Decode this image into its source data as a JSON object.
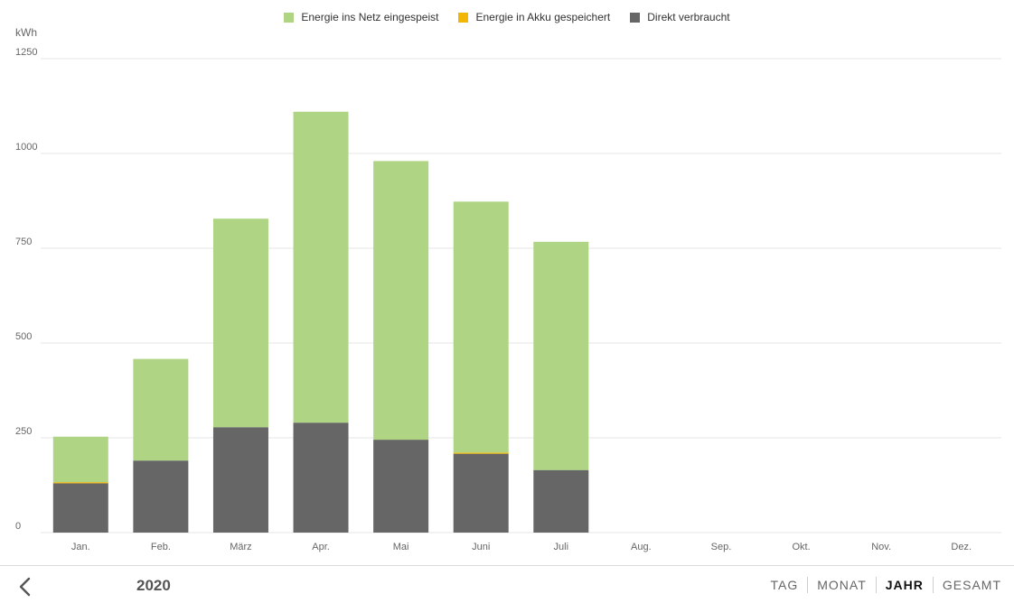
{
  "colors": {
    "grid_fed": "#afd584",
    "battery_stored": "#f2b705",
    "direct_used": "#666666",
    "gridline": "#e6e6e6",
    "axis_text": "#666666"
  },
  "legend": [
    {
      "name": "Energie ins Netz eingespeist",
      "color": "#afd584"
    },
    {
      "name": "Energie in Akku gespeichert",
      "color": "#f2b705"
    },
    {
      "name": "Direkt verbraucht",
      "color": "#666666"
    }
  ],
  "chart_data": {
    "type": "bar",
    "stacked": true,
    "ylabel": "kWh",
    "ylim": [
      0,
      1250
    ],
    "yticks": [
      "0",
      "250",
      "500",
      "750",
      "1000",
      "1250"
    ],
    "grid": true,
    "legend_position": "top-center",
    "categories": [
      "Jan.",
      "Feb.",
      "März",
      "Apr.",
      "Mai",
      "Juni",
      "Juli",
      "Aug.",
      "Sep.",
      "Okt.",
      "Nov.",
      "Dez."
    ],
    "series": [
      {
        "name": "Direkt verbraucht",
        "color": "#666666",
        "values": [
          130,
          190,
          278,
          290,
          245,
          208,
          165,
          0,
          0,
          0,
          0,
          0
        ]
      },
      {
        "name": "Energie in Akku gespeichert",
        "color": "#f2b705",
        "values": [
          3,
          0,
          0,
          0,
          0,
          3,
          0,
          0,
          0,
          0,
          0,
          0
        ]
      },
      {
        "name": "Energie ins Netz eingespeist",
        "color": "#afd584",
        "values": [
          120,
          268,
          550,
          820,
          735,
          662,
          602,
          0,
          0,
          0,
          0,
          0
        ]
      }
    ]
  },
  "footer": {
    "year": "2020",
    "tabs": [
      {
        "label": "TAG",
        "active": false
      },
      {
        "label": "MONAT",
        "active": false
      },
      {
        "label": "JAHR",
        "active": true
      },
      {
        "label": "GESAMT",
        "active": false
      }
    ]
  }
}
